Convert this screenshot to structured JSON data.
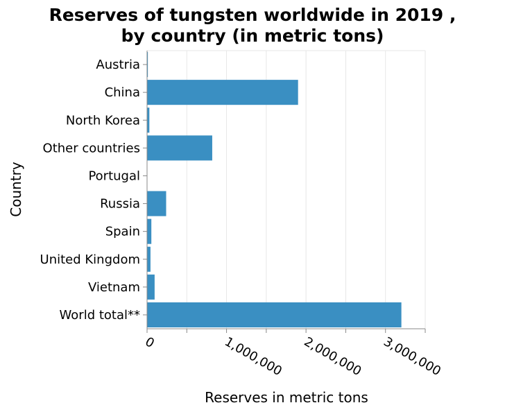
{
  "chart_data": {
    "type": "bar",
    "orientation": "horizontal",
    "title": "Reserves of tungsten worldwide in 2019 , by country (in metric tons)",
    "title_lines": [
      "Reserves of tungsten worldwide in 2019 ,",
      "by country (in metric tons)"
    ],
    "xlabel": "Reserves in metric tons",
    "ylabel": "Country",
    "categories": [
      "Austria",
      "China",
      "North Korea",
      "Other countries",
      "Portugal",
      "Russia",
      "Spain",
      "United Kingdom",
      "Vietnam",
      "World total**"
    ],
    "values": [
      10000,
      1900000,
      29000,
      820000,
      3100,
      240000,
      54000,
      43000,
      95000,
      3200000
    ],
    "xlim": [
      0,
      3500000
    ],
    "xticks": [
      0,
      1000000,
      2000000,
      3000000
    ],
    "xtick_labels": [
      "0",
      "1,000,000",
      "2,000,000",
      "3,000,000"
    ],
    "bar_color": "#3a8fc2",
    "grid": true,
    "legend": "none"
  }
}
